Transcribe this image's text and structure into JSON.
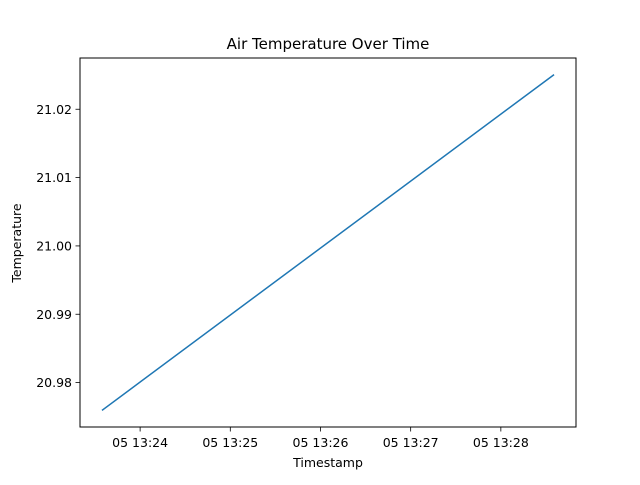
{
  "chart_data": {
    "type": "line",
    "title": "Air Temperature Over Time",
    "xlabel": "Timestamp",
    "ylabel": "Temperature",
    "x": [
      "05 13:23:35",
      "05 13:28:35"
    ],
    "series": [
      {
        "values": [
          20.976,
          21.025
        ],
        "color": "#1f77b4"
      }
    ],
    "x_ticks": [
      "05 13:24",
      "05 13:25",
      "05 13:26",
      "05 13:27",
      "05 13:28"
    ],
    "y_ticks": [
      "20.98",
      "20.99",
      "21.00",
      "21.01",
      "21.02"
    ],
    "xlim": [
      "05 13:23:20",
      "05 13:28:50"
    ],
    "ylim": [
      20.9735,
      21.0275
    ],
    "grid": false,
    "legend": "none"
  }
}
